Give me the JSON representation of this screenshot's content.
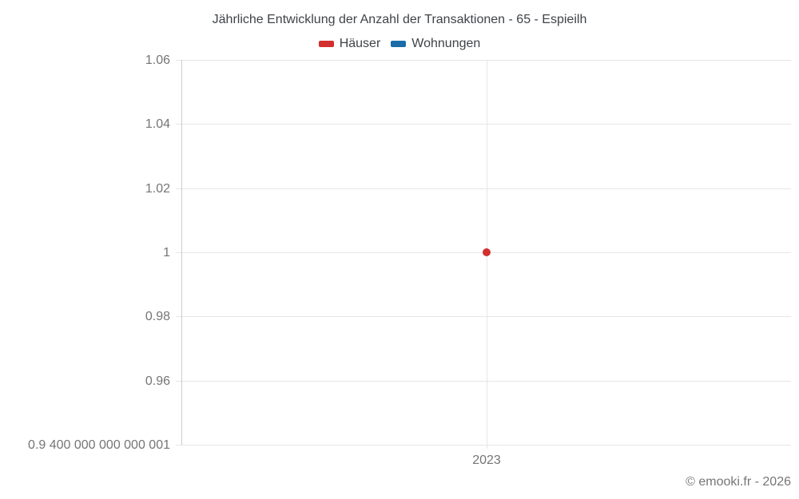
{
  "header": {
    "title": "Jährliche Entwicklung der Anzahl der Transaktionen - 65 - Espieilh"
  },
  "legend": {
    "items": [
      {
        "label": "Häuser",
        "color": "#d32f2f"
      },
      {
        "label": "Wohnungen",
        "color": "#1b6ca8"
      }
    ]
  },
  "footer": {
    "credit": "© emooki.fr - 2026"
  },
  "colors": {
    "grid": "#e6e6e6",
    "axis": "#cccccc",
    "tick_text": "#757575",
    "title_text": "#3f4348"
  },
  "chart_data": {
    "type": "scatter",
    "title": "Jährliche Entwicklung der Anzahl der Transaktionen - 65 - Espieilh",
    "xlabel": "",
    "ylabel": "",
    "categories": [
      "2023"
    ],
    "series": [
      {
        "name": "Häuser",
        "color": "#d32f2f",
        "values": [
          1
        ]
      },
      {
        "name": "Wohnungen",
        "color": "#1b6ca8",
        "values": [
          null
        ]
      }
    ],
    "ylim": [
      0.94,
      1.06
    ],
    "y_ticks": [
      {
        "value": 1.06,
        "label": "1.06"
      },
      {
        "value": 1.04,
        "label": "1.04"
      },
      {
        "value": 1.02,
        "label": "1.02"
      },
      {
        "value": 1.0,
        "label": "1"
      },
      {
        "value": 0.98,
        "label": "0.98"
      },
      {
        "value": 0.96,
        "label": "0.96"
      },
      {
        "value": 0.94,
        "label": "0.9 400 000 000 000 001"
      }
    ],
    "grid": true,
    "legend_position": "top"
  }
}
